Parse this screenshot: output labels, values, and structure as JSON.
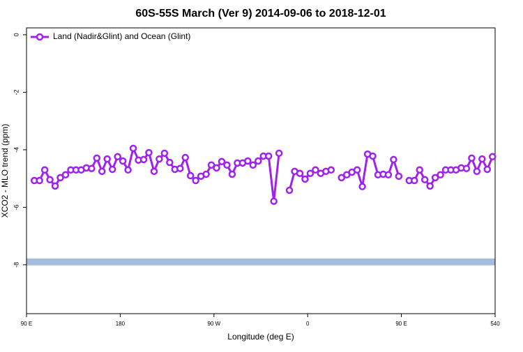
{
  "chart_data": {
    "type": "line",
    "title": "60S-55S March (Ver 9)   2014-09-06 to 2018-12-01",
    "xlabel": "Longitude (deg E)",
    "ylabel": "XCO2 - MLO trend (ppm)",
    "xlim": [
      90,
      540
    ],
    "xticks": [
      {
        "value": 90,
        "label": "90 E"
      },
      180,
      {
        "value": 270,
        "label": "90 W"
      },
      {
        "value": 360,
        "label": "0"
      },
      {
        "value": 450,
        "label": "90 E"
      },
      540
    ],
    "ylim": [
      -9.7,
      0.24
    ],
    "yticks": [
      0,
      -2,
      -4,
      -6,
      -8
    ],
    "legend_position": "top-left",
    "x": [
      97.5,
      102.5,
      107.5,
      112.5,
      117.5,
      122.5,
      127.5,
      132.5,
      137.5,
      142.5,
      147.5,
      152.5,
      157.5,
      162.5,
      167.5,
      172.5,
      177.5,
      182.5,
      187.5,
      192.5,
      197.5,
      202.5,
      207.5,
      212.5,
      217.5,
      222.5,
      227.5,
      232.5,
      237.5,
      242.5,
      247.5,
      252.5,
      257.5,
      262.5,
      267.5,
      272.5,
      277.5,
      282.5,
      287.5,
      292.5,
      297.5,
      302.5,
      307.5,
      312.5,
      317.5,
      322.5,
      327.5,
      332.5,
      337.5,
      342.5,
      347.5,
      352.5,
      357.5,
      362.5,
      367.5,
      372.5,
      377.5,
      382.5,
      387.5,
      392.5,
      397.5,
      402.5,
      407.5,
      412.5,
      417.5,
      422.5,
      427.5,
      432.5,
      437.5,
      442.5,
      447.5,
      452.5,
      457.5,
      462.5,
      467.5,
      472.5,
      477.5,
      482.5,
      487.5,
      492.5,
      497.5,
      502.5,
      507.5,
      512.5,
      517.5,
      522.5,
      527.5,
      532.5,
      537.5
    ],
    "series": [
      {
        "name": "Land (Nadir&Glint) and Ocean (Glint)",
        "color": "#a020f0",
        "values": [
          -5.07,
          -5.07,
          -4.7,
          -5.04,
          -5.26,
          -4.97,
          -4.87,
          -4.7,
          -4.7,
          -4.7,
          -4.63,
          -4.65,
          -4.29,
          -4.75,
          -4.32,
          -4.68,
          -4.24,
          -4.39,
          -4.7,
          -3.95,
          -4.36,
          -4.34,
          -4.1,
          -4.75,
          -4.32,
          -4.12,
          -4.44,
          -4.68,
          -4.65,
          -4.27,
          -4.9,
          -5.07,
          -4.92,
          -4.85,
          -4.53,
          -4.63,
          -4.41,
          -4.53,
          -4.85,
          -4.46,
          -4.46,
          -4.39,
          -4.53,
          -4.39,
          -4.22,
          -4.22,
          -5.79,
          -4.12,
          null,
          -5.41,
          -4.75,
          -4.82,
          -5.02,
          -4.82,
          -4.7,
          -4.82,
          -4.75,
          -4.7,
          null,
          -4.97,
          -4.87,
          -4.78,
          -4.7,
          -5.28,
          -4.15,
          -4.22,
          -4.87,
          -4.85,
          -4.87,
          -4.34,
          -4.92,
          null,
          -5.07,
          -5.07,
          -4.7,
          -5.04,
          -5.26,
          -4.97,
          -4.87,
          -4.7,
          -4.7,
          -4.7,
          -4.63,
          -4.65,
          -4.29,
          -4.75,
          -4.32,
          -4.68,
          -4.24
        ]
      }
    ],
    "reference_band": {
      "values": [
        -8.02,
        -7.78
      ],
      "color": "#a7bbdd"
    }
  }
}
